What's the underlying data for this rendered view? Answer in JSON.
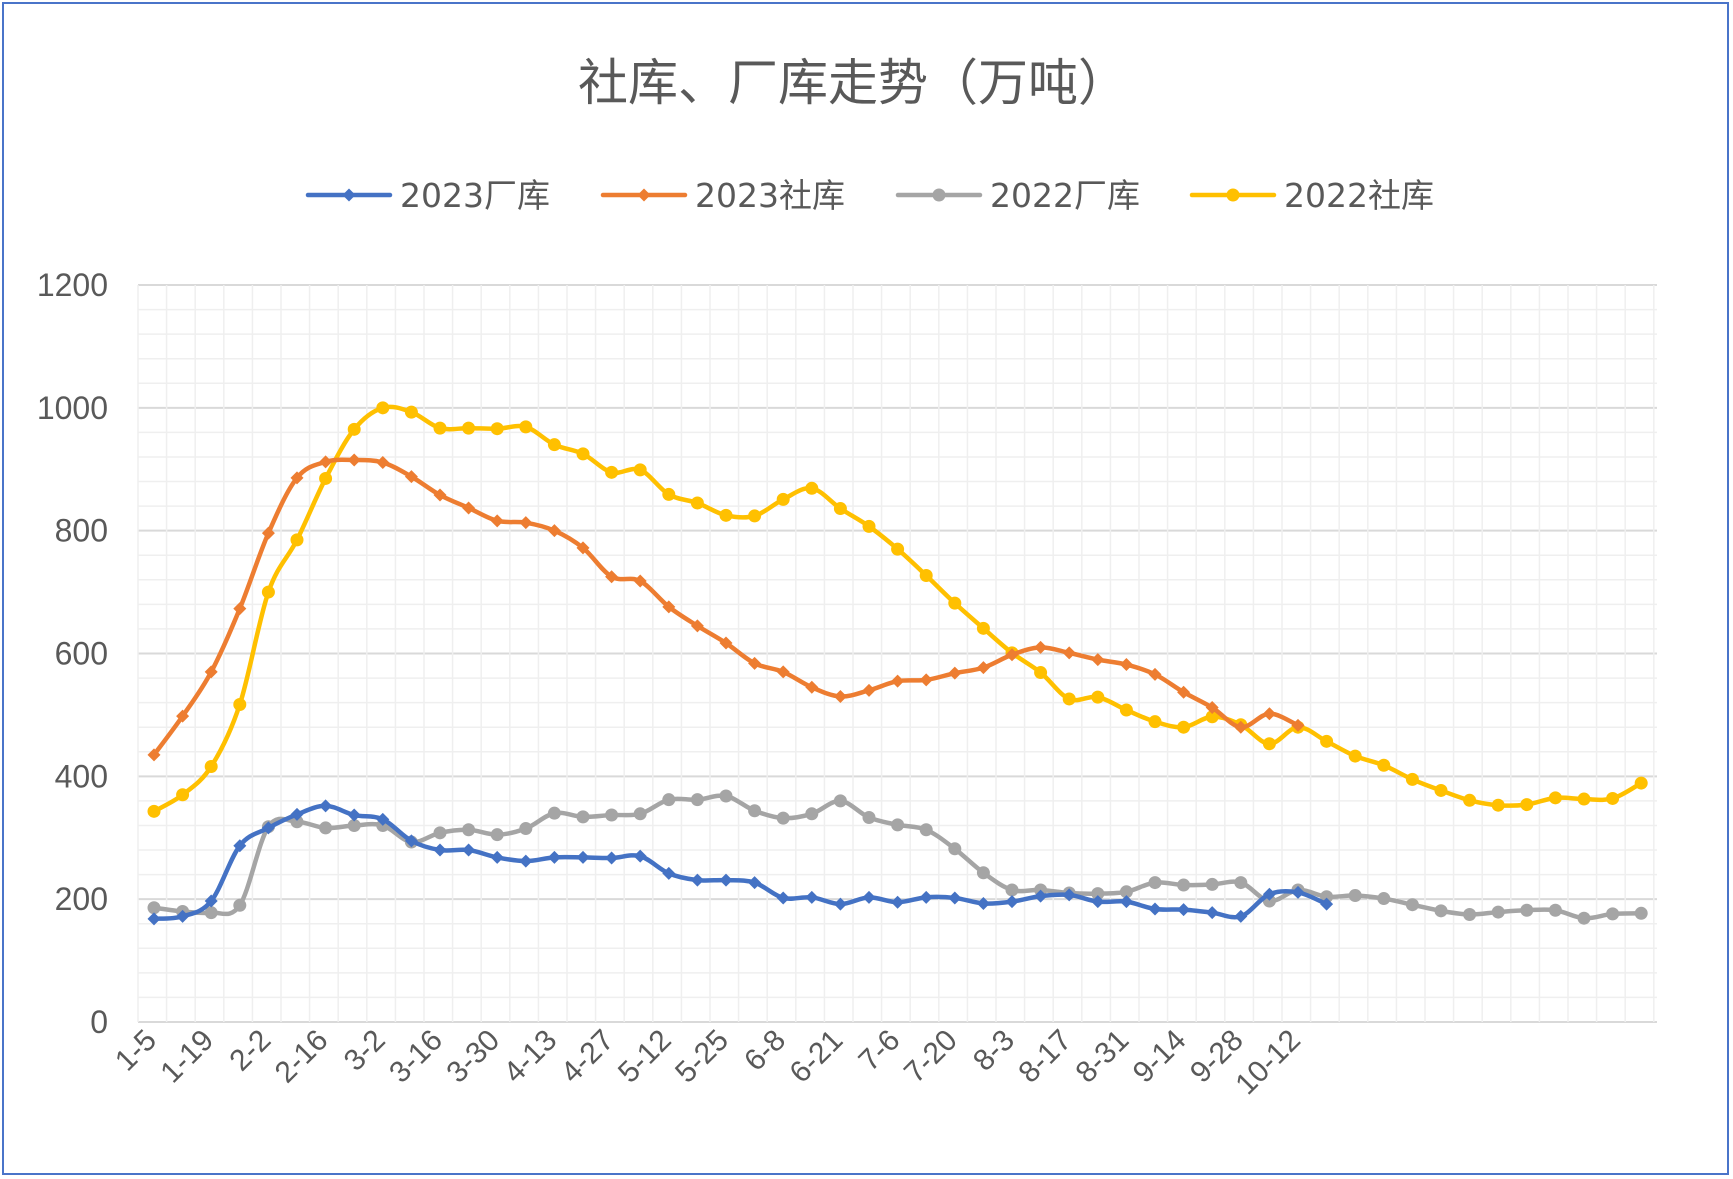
{
  "chart_data": {
    "type": "line",
    "title": "社库、厂库走势（万吨）",
    "xlabel": "",
    "ylabel": "",
    "ylim": [
      0,
      1200
    ],
    "yticks": [
      0,
      200,
      400,
      600,
      800,
      1000,
      1200
    ],
    "grid": true,
    "legend_position": "top",
    "x_tick_labels": [
      "1-5",
      "1-19",
      "2-2",
      "2-16",
      "3-2",
      "3-16",
      "3-30",
      "4-13",
      "4-27",
      "5-12",
      "5-25",
      "6-8",
      "6-21",
      "7-6",
      "7-20",
      "8-3",
      "8-17",
      "8-31",
      "9-14",
      "9-28",
      "10-12"
    ],
    "series": [
      {
        "name": "2023厂库",
        "color": "#4472c4",
        "marker": "diamond",
        "values": [
          168,
          172,
          197,
          287,
          316,
          338,
          352,
          337,
          330,
          295,
          280,
          280,
          268,
          262,
          268,
          268,
          267,
          270,
          242,
          231,
          231,
          227,
          202,
          203,
          192,
          203,
          195,
          203,
          202,
          193,
          196,
          205,
          207,
          196,
          196,
          184,
          183,
          178,
          172,
          208,
          211,
          192
        ]
      },
      {
        "name": "2023社库",
        "color": "#ed7d31",
        "marker": "diamond",
        "values": [
          435,
          498,
          570,
          673,
          796,
          886,
          912,
          915,
          911,
          888,
          858,
          837,
          816,
          813,
          800,
          772,
          725,
          718,
          676,
          645,
          617,
          584,
          570,
          545,
          530,
          540,
          555,
          557,
          568,
          577,
          598,
          610,
          601,
          590,
          582,
          566,
          537,
          512,
          480,
          502,
          483
        ]
      },
      {
        "name": "2022厂库",
        "color": "#a5a5a5",
        "marker": "circle",
        "values": [
          186,
          180,
          178,
          190,
          318,
          326,
          316,
          320,
          320,
          293,
          308,
          313,
          305,
          315,
          340,
          334,
          337,
          339,
          362,
          362,
          368,
          344,
          332,
          339,
          360,
          333,
          321,
          313,
          282,
          243,
          215,
          215,
          210,
          209,
          212,
          227,
          223,
          224,
          227,
          197,
          215,
          204,
          206,
          201,
          191,
          181,
          175,
          179,
          182,
          182,
          169,
          176,
          177
        ]
      },
      {
        "name": "2022社库",
        "color": "#ffc000",
        "marker": "circle",
        "values": [
          343,
          370,
          416,
          517,
          700,
          785,
          885,
          965,
          1000,
          993,
          967,
          967,
          966,
          969,
          940,
          925,
          895,
          899,
          859,
          845,
          825,
          824,
          851,
          869,
          836,
          807,
          770,
          727,
          682,
          641,
          601,
          569,
          526,
          529,
          508,
          489,
          480,
          497,
          484,
          453,
          480,
          457,
          433,
          418,
          395,
          377,
          361,
          353,
          354,
          365,
          363,
          364,
          389
        ]
      }
    ]
  }
}
